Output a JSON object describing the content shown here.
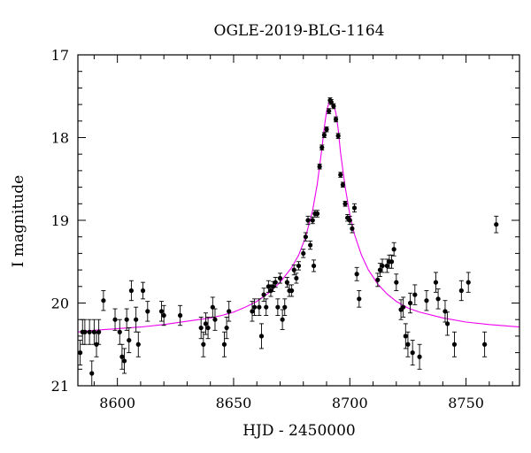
{
  "chart_data": {
    "type": "scatter",
    "title": "OGLE-2019-BLG-1164",
    "xlabel": "HJD - 2450000",
    "ylabel": "I magnitude",
    "xlim": [
      8583,
      8773
    ],
    "ylim": [
      21,
      17
    ],
    "y_inverted": true,
    "xticks": [
      8600,
      8650,
      8700,
      8750
    ],
    "yticks": [
      17,
      18,
      19,
      20,
      21
    ],
    "grid": false,
    "legend": "none",
    "colors": {
      "points": "#000000",
      "model": "#ee00ee"
    },
    "series": [
      {
        "kind": "points_with_errorbars",
        "x": [
          8584,
          8585,
          8586,
          8588,
          8589,
          8590,
          8591,
          8592,
          8594,
          8599,
          8601,
          8602,
          8603,
          8604,
          8605,
          8606,
          8608,
          8609,
          8611,
          8613,
          8619,
          8620,
          8627,
          8636,
          8637,
          8638,
          8639,
          8641,
          8642,
          8646,
          8647,
          8648,
          8658,
          8659,
          8661,
          8662,
          8663,
          8664,
          8665,
          8666,
          8667,
          8668,
          8669,
          8670,
          8671,
          8672,
          8673,
          8674,
          8675,
          8676,
          8677,
          8678,
          8680,
          8681,
          8682,
          8683,
          8684,
          8684.5,
          8685,
          8686,
          8687,
          8688,
          8689,
          8690,
          8691,
          8691.5,
          8692,
          8693,
          8694,
          8695,
          8696,
          8697,
          8698,
          8699,
          8700,
          8701,
          8702,
          8703,
          8704,
          8712,
          8713,
          8714,
          8716,
          8717,
          8718,
          8719,
          8720,
          8722,
          8723,
          8724,
          8725,
          8726,
          8727,
          8728,
          8730,
          8733,
          8737,
          8738,
          8741,
          8742,
          8745,
          8748,
          8751,
          8758,
          8763
        ],
        "y": [
          20.6,
          20.35,
          20.35,
          20.35,
          20.85,
          20.35,
          20.5,
          20.35,
          19.97,
          20.2,
          20.35,
          20.65,
          20.7,
          20.2,
          20.45,
          19.85,
          20.2,
          20.5,
          19.85,
          20.1,
          20.1,
          20.15,
          20.15,
          20.3,
          20.5,
          20.25,
          20.3,
          20.05,
          20.2,
          20.5,
          20.3,
          20.1,
          20.1,
          20.05,
          20.05,
          20.4,
          19.9,
          20.05,
          19.8,
          19.85,
          19.8,
          19.75,
          20.05,
          19.7,
          20.2,
          20.05,
          19.75,
          19.85,
          19.85,
          19.6,
          19.7,
          19.55,
          19.4,
          19.2,
          19.0,
          19.3,
          19.0,
          19.55,
          18.92,
          18.92,
          18.35,
          18.12,
          17.97,
          17.9,
          17.68,
          17.55,
          17.57,
          17.62,
          17.78,
          17.98,
          18.45,
          18.57,
          18.8,
          18.97,
          19.0,
          19.1,
          18.85,
          19.65,
          19.95,
          19.72,
          19.6,
          19.55,
          19.55,
          19.5,
          19.5,
          19.35,
          19.75,
          20.08,
          20.05,
          20.4,
          20.5,
          20.0,
          20.6,
          19.9,
          20.65,
          19.97,
          19.75,
          19.95,
          20.1,
          20.25,
          20.5,
          19.85,
          19.75,
          20.5,
          19.05
        ],
        "yerr": [
          0.15,
          0.15,
          0.15,
          0.15,
          0.15,
          0.15,
          0.15,
          0.15,
          0.12,
          0.13,
          0.15,
          0.15,
          0.15,
          0.13,
          0.15,
          0.12,
          0.15,
          0.15,
          0.1,
          0.12,
          0.12,
          0.12,
          0.12,
          0.13,
          0.15,
          0.13,
          0.13,
          0.12,
          0.13,
          0.15,
          0.13,
          0.12,
          0.12,
          0.1,
          0.1,
          0.15,
          0.08,
          0.1,
          0.07,
          0.07,
          0.06,
          0.06,
          0.1,
          0.06,
          0.12,
          0.1,
          0.06,
          0.07,
          0.07,
          0.06,
          0.06,
          0.05,
          0.05,
          0.05,
          0.05,
          0.05,
          0.04,
          0.07,
          0.04,
          0.04,
          0.03,
          0.03,
          0.03,
          0.03,
          0.03,
          0.03,
          0.03,
          0.03,
          0.03,
          0.03,
          0.03,
          0.03,
          0.03,
          0.04,
          0.05,
          0.05,
          0.05,
          0.08,
          0.1,
          0.08,
          0.08,
          0.08,
          0.08,
          0.08,
          0.08,
          0.08,
          0.1,
          0.12,
          0.12,
          0.15,
          0.15,
          0.12,
          0.15,
          0.12,
          0.15,
          0.12,
          0.12,
          0.12,
          0.13,
          0.14,
          0.15,
          0.12,
          0.12,
          0.15,
          0.1
        ]
      },
      {
        "kind": "model_curve",
        "x": [
          8583,
          8590,
          8600,
          8610,
          8620,
          8630,
          8640,
          8645,
          8650,
          8655,
          8660,
          8665,
          8670,
          8675,
          8678,
          8681,
          8684,
          8686,
          8688,
          8689,
          8690,
          8691,
          8692,
          8693,
          8694,
          8695,
          8696,
          8698,
          8700,
          8702,
          8705,
          8708,
          8712,
          8716,
          8720,
          8725,
          8730,
          8740,
          8750,
          8760,
          8773
        ],
        "y": [
          20.35,
          20.33,
          20.31,
          20.29,
          20.26,
          20.22,
          20.18,
          20.15,
          20.11,
          20.05,
          19.98,
          19.88,
          19.75,
          19.57,
          19.42,
          19.2,
          18.88,
          18.56,
          18.13,
          17.88,
          17.68,
          17.58,
          17.56,
          17.6,
          17.7,
          17.9,
          18.18,
          18.6,
          18.93,
          19.17,
          19.42,
          19.6,
          19.77,
          19.89,
          19.98,
          20.06,
          20.11,
          20.18,
          20.23,
          20.26,
          20.29
        ]
      }
    ]
  }
}
